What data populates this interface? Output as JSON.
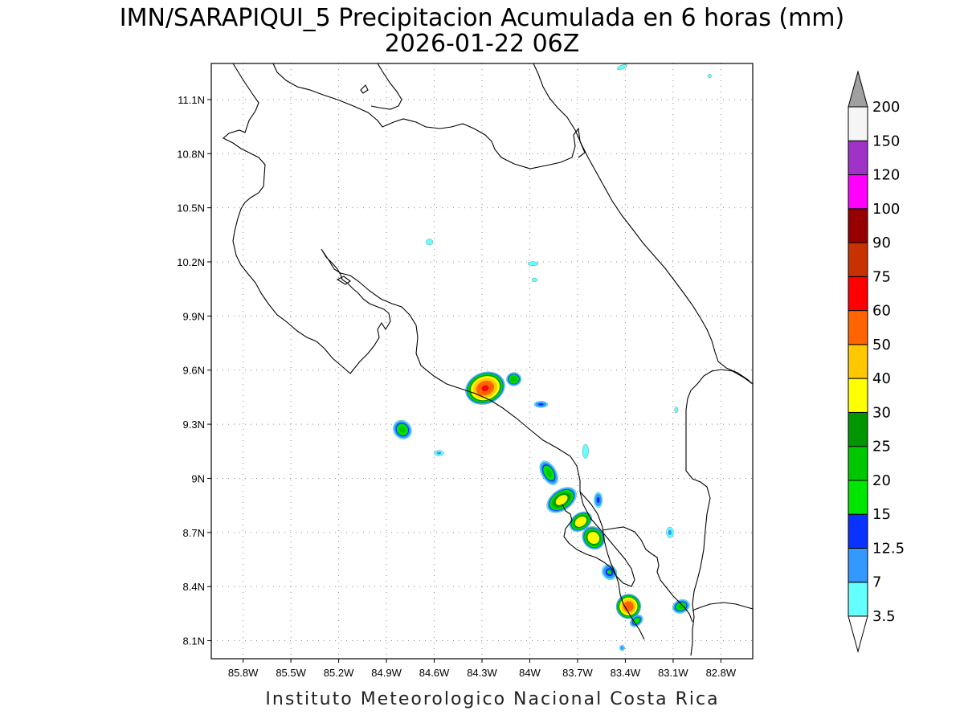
{
  "title_line1": "IMN/SARAPIQUI_5 Precipitacion Acumulada en 6 horas (mm)",
  "title_line2": "2026-01-22 06Z",
  "credit": "Instituto Meteorologico Nacional Costa Rica",
  "map_extent": {
    "lon": [
      -86.0,
      -82.6
    ],
    "lat": [
      8.0,
      11.3
    ]
  },
  "lat_ticks": [
    {
      "value": 11.1,
      "label": "11.1N"
    },
    {
      "value": 10.8,
      "label": "10.8N"
    },
    {
      "value": 10.5,
      "label": "10.5N"
    },
    {
      "value": 10.2,
      "label": "10.2N"
    },
    {
      "value": 9.9,
      "label": "9.9N"
    },
    {
      "value": 9.6,
      "label": "9.6N"
    },
    {
      "value": 9.3,
      "label": "9.3N"
    },
    {
      "value": 9.0,
      "label": "9N"
    },
    {
      "value": 8.7,
      "label": "8.7N"
    },
    {
      "value": 8.4,
      "label": "8.4N"
    },
    {
      "value": 8.1,
      "label": "8.1N"
    }
  ],
  "lon_ticks": [
    {
      "value": -85.8,
      "label": "85.8W"
    },
    {
      "value": -85.5,
      "label": "85.5W"
    },
    {
      "value": -85.2,
      "label": "85.2W"
    },
    {
      "value": -84.9,
      "label": "84.9W"
    },
    {
      "value": -84.6,
      "label": "84.6W"
    },
    {
      "value": -84.3,
      "label": "84.3W"
    },
    {
      "value": -84.0,
      "label": "84W"
    },
    {
      "value": -83.7,
      "label": "83.7W"
    },
    {
      "value": -83.4,
      "label": "83.4W"
    },
    {
      "value": -83.1,
      "label": "83.1W"
    },
    {
      "value": -82.8,
      "label": "82.8W"
    }
  ],
  "colorbar": {
    "labels": [
      "3.5",
      "7",
      "12.5",
      "15",
      "20",
      "25",
      "30",
      "40",
      "50",
      "60",
      "75",
      "90",
      "100",
      "120",
      "150",
      "200"
    ],
    "colors": [
      "#64ffff",
      "#3399ff",
      "#0a32ff",
      "#00e600",
      "#00c800",
      "#009600",
      "#ffff00",
      "#ffc800",
      "#ff6400",
      "#ff0000",
      "#c83200",
      "#960000",
      "#ff00ff",
      "#a032c8",
      "#f5f5f5"
    ],
    "min_arrow_color": "#ffffff",
    "max_arrow_color": "#a0a0a0"
  },
  "precip_cells": [
    {
      "lon": -84.28,
      "lat": 9.5,
      "rx": 0.13,
      "ry": 0.09,
      "max": 62,
      "rot": -20
    },
    {
      "lon": -84.1,
      "lat": 9.55,
      "rx": 0.05,
      "ry": 0.04,
      "max": 25,
      "rot": 0
    },
    {
      "lon": -83.93,
      "lat": 9.41,
      "rx": 0.05,
      "ry": 0.02,
      "max": 14,
      "rot": 0
    },
    {
      "lon": -84.8,
      "lat": 9.27,
      "rx": 0.06,
      "ry": 0.06,
      "max": 22,
      "rot": -40
    },
    {
      "lon": -84.57,
      "lat": 9.14,
      "rx": 0.04,
      "ry": 0.02,
      "max": 8,
      "rot": 0
    },
    {
      "lon": -83.88,
      "lat": 9.03,
      "rx": 0.05,
      "ry": 0.08,
      "max": 22,
      "rot": -30
    },
    {
      "lon": -83.8,
      "lat": 8.88,
      "rx": 0.11,
      "ry": 0.06,
      "max": 35,
      "rot": -35
    },
    {
      "lon": -83.68,
      "lat": 8.76,
      "rx": 0.08,
      "ry": 0.05,
      "max": 40,
      "rot": -35
    },
    {
      "lon": -83.6,
      "lat": 8.67,
      "rx": 0.07,
      "ry": 0.07,
      "max": 40,
      "rot": -40
    },
    {
      "lon": -83.65,
      "lat": 9.15,
      "rx": 0.03,
      "ry": 0.06,
      "max": 6,
      "rot": 0
    },
    {
      "lon": -83.57,
      "lat": 8.88,
      "rx": 0.03,
      "ry": 0.05,
      "max": 14,
      "rot": 0
    },
    {
      "lon": -83.5,
      "lat": 8.48,
      "rx": 0.05,
      "ry": 0.05,
      "max": 16,
      "rot": -40
    },
    {
      "lon": -83.38,
      "lat": 8.29,
      "rx": 0.08,
      "ry": 0.07,
      "max": 60,
      "rot": -40
    },
    {
      "lon": -83.33,
      "lat": 8.21,
      "rx": 0.05,
      "ry": 0.03,
      "max": 20,
      "rot": -40
    },
    {
      "lon": -83.05,
      "lat": 8.29,
      "rx": 0.06,
      "ry": 0.04,
      "max": 22,
      "rot": -20
    },
    {
      "lon": -83.12,
      "lat": 8.7,
      "rx": 0.03,
      "ry": 0.04,
      "max": 8,
      "rot": 0
    },
    {
      "lon": -84.63,
      "lat": 10.31,
      "rx": 0.04,
      "ry": 0.03,
      "max": 5,
      "rot": 0
    },
    {
      "lon": -83.98,
      "lat": 10.19,
      "rx": 0.06,
      "ry": 0.02,
      "max": 5,
      "rot": 0
    },
    {
      "lon": -83.97,
      "lat": 10.1,
      "rx": 0.03,
      "ry": 0.02,
      "max": 5,
      "rot": 0
    },
    {
      "lon": -83.08,
      "lat": 9.38,
      "rx": 0.02,
      "ry": 0.03,
      "max": 5,
      "rot": 0
    },
    {
      "lon": -83.42,
      "lat": 11.28,
      "rx": 0.06,
      "ry": 0.02,
      "max": 5,
      "rot": -20
    },
    {
      "lon": -82.87,
      "lat": 11.23,
      "rx": 0.02,
      "ry": 0.02,
      "max": 5,
      "rot": 0
    },
    {
      "lon": -83.42,
      "lat": 8.06,
      "rx": 0.02,
      "ry": 0.02,
      "max": 10,
      "rot": 0
    }
  ]
}
